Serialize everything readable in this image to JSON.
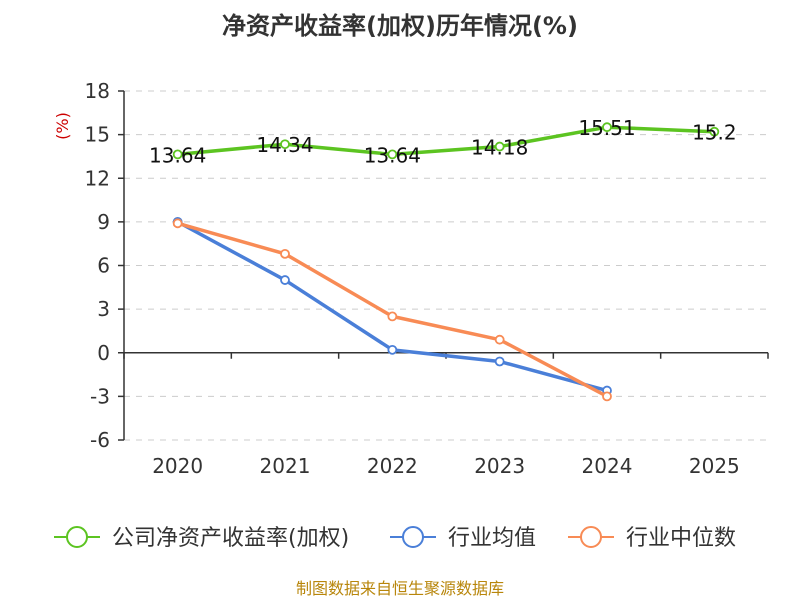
{
  "chart_data": {
    "type": "line",
    "title": "净资产收益率(加权)历年情况(%)",
    "ylabel": "(%)",
    "xlabel": "",
    "categories": [
      "2020",
      "2021",
      "2022",
      "2023",
      "2024",
      "2025"
    ],
    "ylim": [
      -6,
      18
    ],
    "yticks": [
      18,
      15,
      12,
      9,
      6,
      3,
      0,
      -3,
      -6
    ],
    "grid": true,
    "legend_position": "bottom",
    "series": [
      {
        "name": "公司净资产收益率(加权)",
        "color": "#5cc421",
        "values": [
          13.64,
          14.34,
          13.64,
          14.18,
          15.51,
          15.2
        ],
        "labels": [
          "13.64",
          "14.34",
          "13.64",
          "14.18",
          "15.51",
          "15.2"
        ]
      },
      {
        "name": "行业均值",
        "color": "#4a7fd8",
        "values": [
          9.0,
          5.0,
          0.2,
          -0.6,
          -2.6,
          null
        ]
      },
      {
        "name": "行业中位数",
        "color": "#f88b55",
        "values": [
          8.9,
          6.8,
          2.5,
          0.9,
          -3.0,
          null
        ]
      }
    ],
    "source": "制图数据来自恒生聚源数据库"
  }
}
